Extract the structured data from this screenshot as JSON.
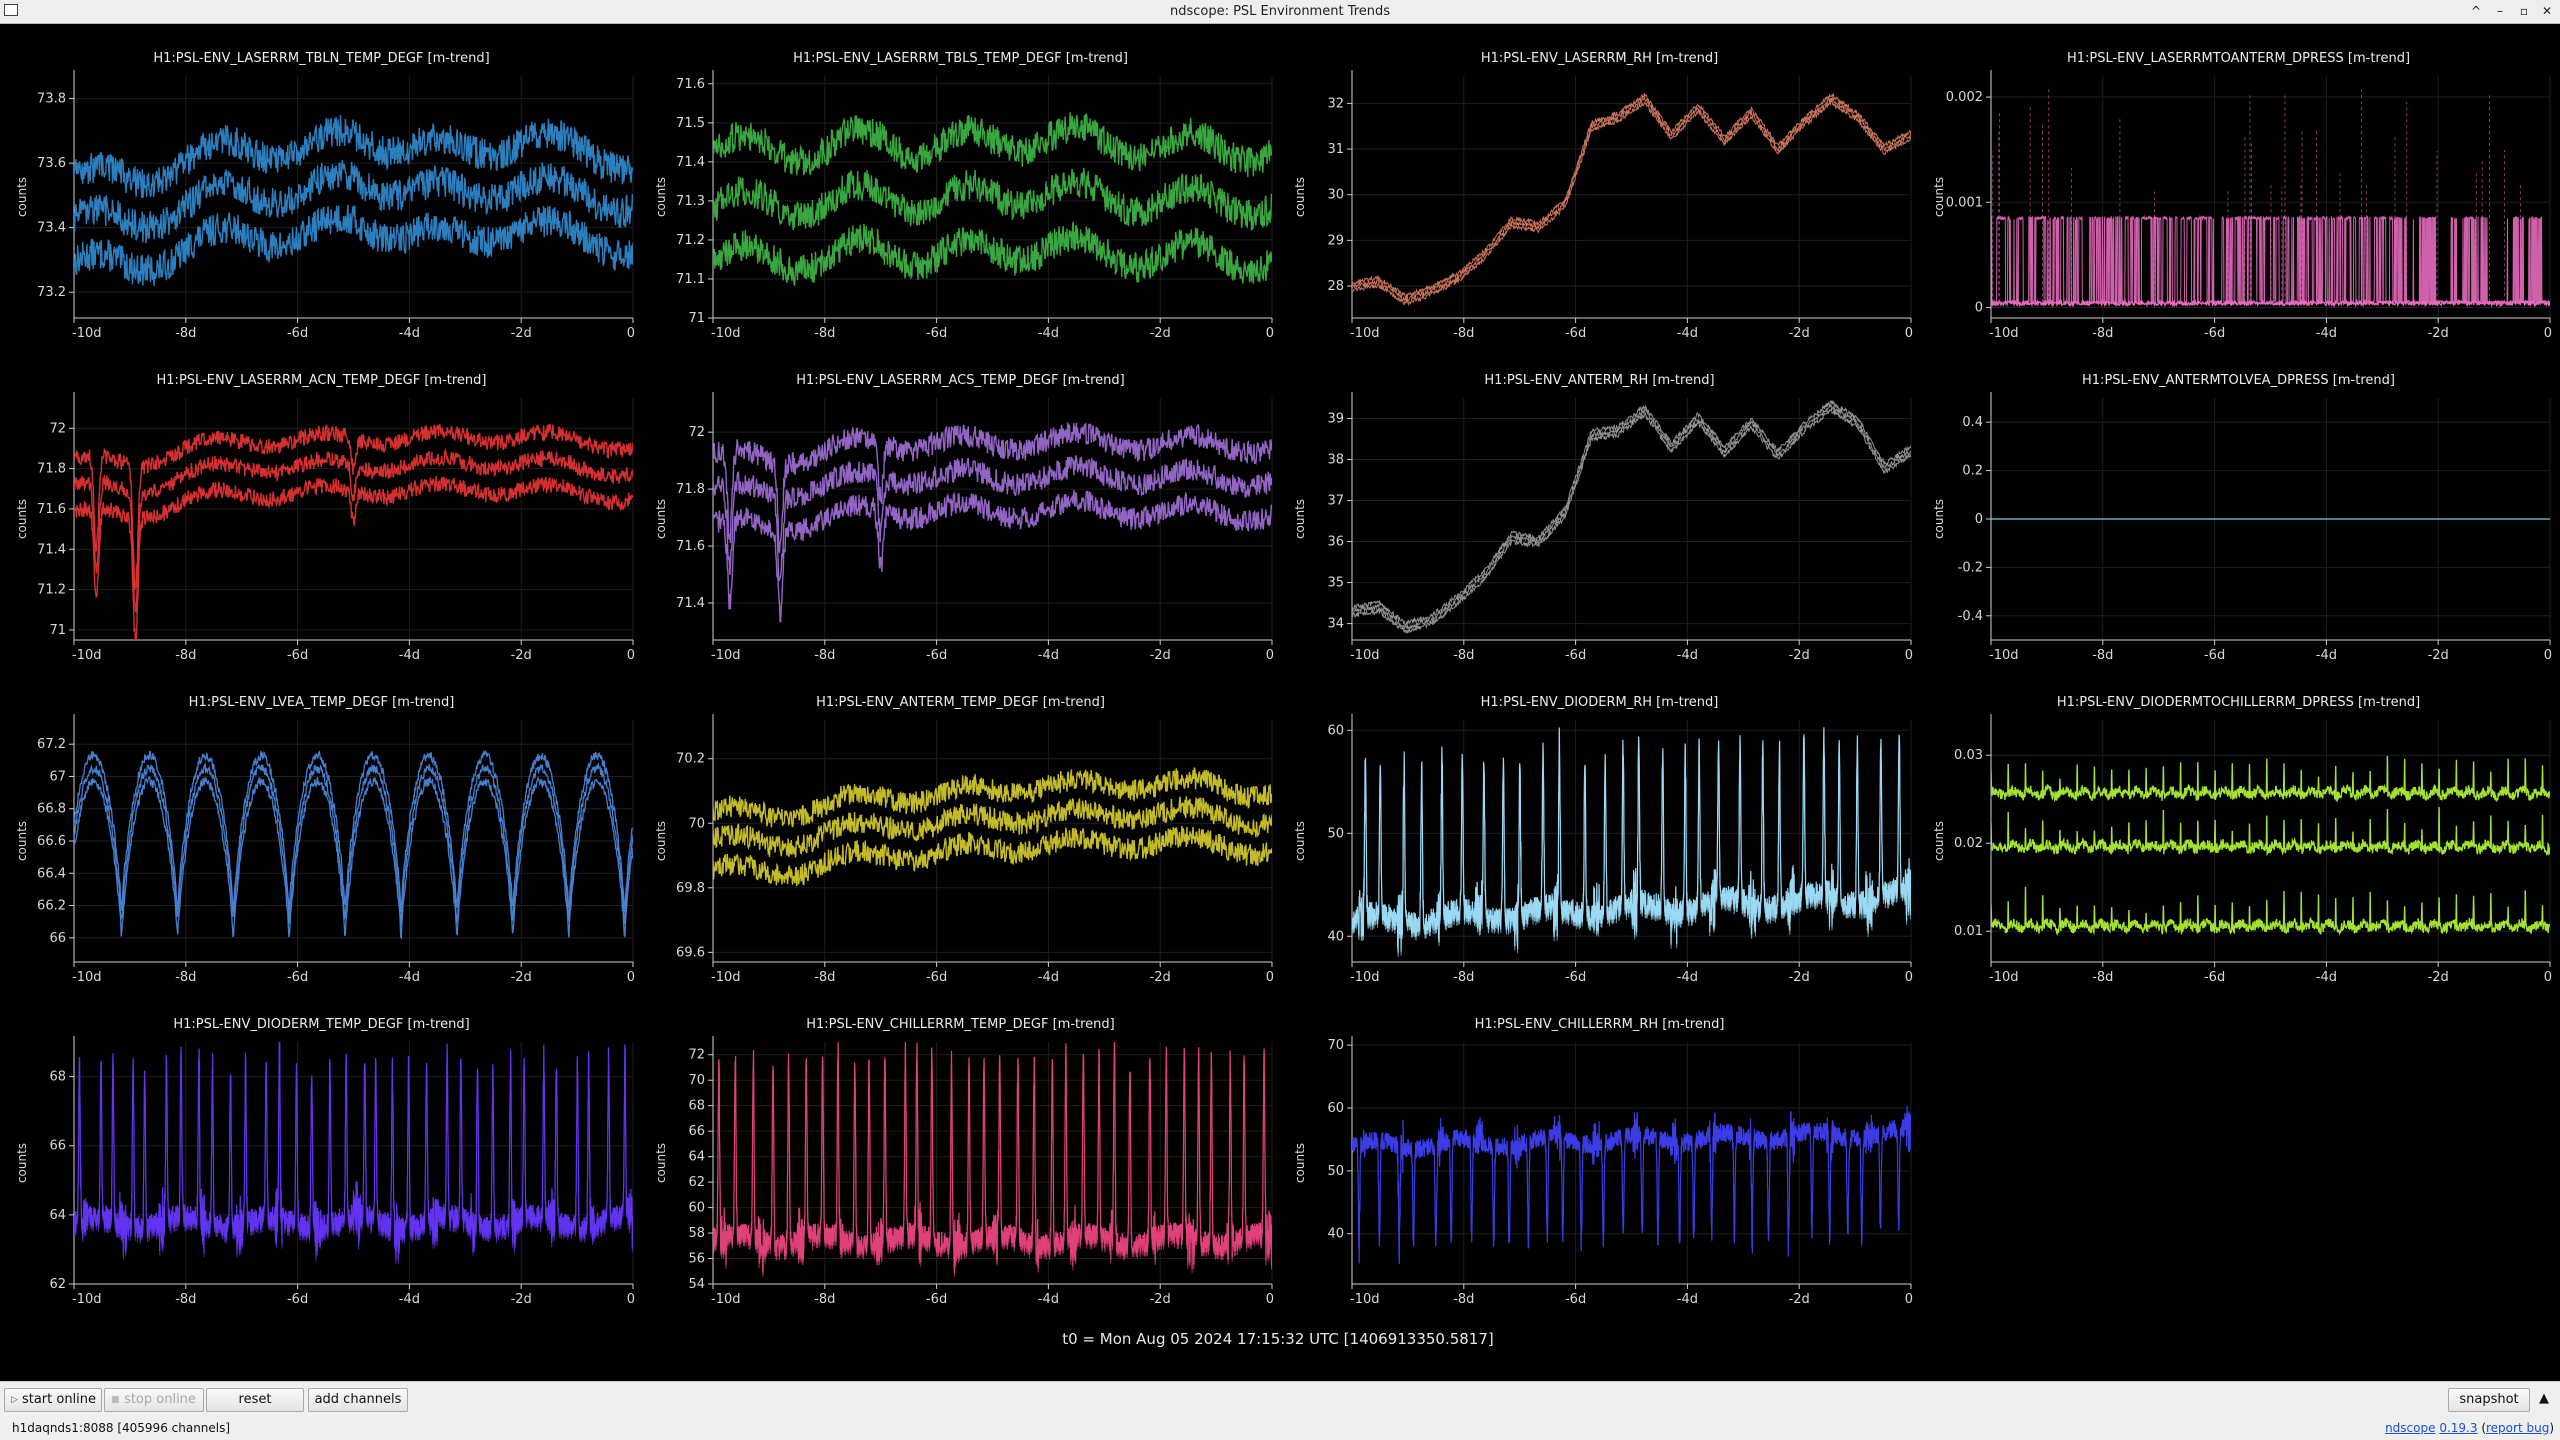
{
  "window": {
    "title": "ndscope: PSL Environment Trends",
    "controls": [
      "^",
      "–",
      "▫",
      "✕"
    ]
  },
  "common": {
    "ylabel": "counts",
    "xticks": [
      "-10d",
      "-8d",
      "-6d",
      "-4d",
      "-2d",
      "0"
    ]
  },
  "t0_label": "t0 = Mon Aug 05 2024 17:15:32 UTC [1406913350.5817]",
  "toolbar": {
    "start_online": "start online",
    "stop_online": "stop online",
    "reset": "reset",
    "add_channels": "add channels",
    "snapshot": "snapshot"
  },
  "status": {
    "connection": "h1daqnds1:8088  [405996 channels]",
    "ndscope_link": "ndscope",
    "version_link": "0.19.3",
    "report_bug_link": "report bug"
  },
  "chart_data": [
    {
      "type": "line",
      "title": "H1:PSL-ENV_LASERRM_TBLN_TEMP_DEGF [m-trend]",
      "color": "#2e86c8",
      "ylim": [
        73.12,
        73.87
      ],
      "yticks": [
        "73.2",
        "73.4",
        "73.6",
        "73.8"
      ],
      "ytick_values": [
        73.2,
        73.4,
        73.6,
        73.8
      ],
      "shape": "band3",
      "centers": [
        73.43,
        73.41,
        73.47,
        73.52,
        73.5,
        73.55,
        73.52,
        73.5,
        73.54,
        73.51,
        73.47
      ],
      "gap": 0.135,
      "noise": 0.05,
      "trace_width": 0.025
    },
    {
      "type": "line",
      "title": "H1:PSL-ENV_LASERRM_TBLS_TEMP_DEGF [m-trend]",
      "color": "#3cb043",
      "ylim": [
        71.0,
        71.62
      ],
      "yticks": [
        "71",
        "71.1",
        "71.2",
        "71.3",
        "71.4",
        "71.5",
        "71.6"
      ],
      "ytick_values": [
        71.0,
        71.1,
        71.2,
        71.3,
        71.4,
        71.5,
        71.6
      ],
      "shape": "band3",
      "centers": [
        71.28,
        71.3,
        71.29,
        71.32,
        71.3,
        71.31,
        71.33,
        71.3,
        71.31,
        71.29,
        71.3
      ],
      "gap": 0.14,
      "noise": 0.04,
      "trace_width": 0.02
    },
    {
      "type": "line",
      "title": "H1:PSL-ENV_LASERRM_RH [m-trend]",
      "color": "#d47a62",
      "ylim": [
        27.3,
        32.6
      ],
      "yticks": [
        "28",
        "29",
        "30",
        "31",
        "32"
      ],
      "ytick_values": [
        28,
        29,
        30,
        31,
        32
      ],
      "shape": "line",
      "points": [
        28.0,
        28.1,
        27.7,
        27.9,
        28.2,
        28.7,
        29.4,
        29.3,
        29.8,
        31.5,
        31.7,
        32.1,
        31.3,
        31.9,
        31.2,
        31.8,
        31.0,
        31.6,
        32.1,
        31.7,
        31.0,
        31.3
      ],
      "noise": 0.05,
      "trace_width": 0.08
    },
    {
      "type": "line",
      "title": "H1:PSL-ENV_LASERRMTOANTERM_DPRESS [m-trend]",
      "color": "#e66cbd",
      "ylim": [
        -0.0001,
        0.0022
      ],
      "yticks": [
        "0",
        "0.001",
        "0.002"
      ],
      "ytick_values": [
        0,
        0.001,
        0.002
      ],
      "shape": "dpress_pink"
    },
    {
      "type": "line",
      "title": "H1:PSL-ENV_LASERRM_ACN_TEMP_DEGF [m-trend]",
      "color": "#e23232",
      "ylim": [
        70.95,
        72.15
      ],
      "yticks": [
        "71",
        "71.2",
        "71.4",
        "71.6",
        "71.8",
        "72"
      ],
      "ytick_values": [
        71.0,
        71.2,
        71.4,
        71.6,
        71.8,
        72.0
      ],
      "shape": "band3",
      "centers": [
        71.72,
        71.68,
        71.78,
        71.8,
        71.82,
        71.81,
        71.83,
        71.82,
        71.84,
        71.8,
        71.79
      ],
      "gap": 0.13,
      "noise": 0.04,
      "trace_width": 0.03,
      "dips": [
        [
          0.04,
          0.45
        ],
        [
          0.11,
          0.6
        ],
        [
          0.5,
          0.15
        ]
      ]
    },
    {
      "type": "line",
      "title": "H1:PSL-ENV_LASERRM_ACS_TEMP_DEGF [m-trend]",
      "color": "#9a6ad0",
      "ylim": [
        71.27,
        72.12
      ],
      "yticks": [
        "71.4",
        "71.6",
        "71.8",
        "72"
      ],
      "ytick_values": [
        71.4,
        71.6,
        71.8,
        72.0
      ],
      "shape": "band3",
      "centers": [
        71.8,
        71.78,
        71.82,
        71.84,
        71.85,
        71.83,
        71.86,
        71.84,
        71.85,
        71.83,
        71.84
      ],
      "gap": 0.12,
      "noise": 0.04,
      "trace_width": 0.02,
      "dips": [
        [
          0.03,
          0.3
        ],
        [
          0.12,
          0.3
        ],
        [
          0.3,
          0.2
        ]
      ]
    },
    {
      "type": "line",
      "title": "H1:PSL-ENV_ANTERM_RH [m-trend]",
      "color": "#9a9a9a",
      "ylim": [
        33.6,
        39.5
      ],
      "yticks": [
        "34",
        "35",
        "36",
        "37",
        "38",
        "39"
      ],
      "ytick_values": [
        34,
        35,
        36,
        37,
        38,
        39
      ],
      "shape": "line",
      "points": [
        34.3,
        34.4,
        33.9,
        34.1,
        34.6,
        35.2,
        36.1,
        36.0,
        36.7,
        38.6,
        38.7,
        39.2,
        38.3,
        39.0,
        38.2,
        38.9,
        38.1,
        38.8,
        39.3,
        38.9,
        37.8,
        38.2
      ],
      "noise": 0.06,
      "trace_width": 0.1
    },
    {
      "type": "line",
      "title": "H1:PSL-ENV_ANTERMTOLVEA_DPRESS [m-trend]",
      "color": "#6fd3d8",
      "ylim": [
        -0.5,
        0.5
      ],
      "yticks": [
        "-0.4",
        "-0.2",
        "0",
        "0.2",
        "0.4"
      ],
      "ytick_values": [
        -0.4,
        -0.2,
        0,
        0.2,
        0.4
      ],
      "shape": "flat",
      "value": 0
    },
    {
      "type": "line",
      "title": "H1:PSL-ENV_LVEA_TEMP_DEGF [m-trend]",
      "color": "#4a86d8",
      "ylim": [
        65.85,
        67.35
      ],
      "yticks": [
        "66",
        "66.2",
        "66.4",
        "66.6",
        "66.8",
        "67",
        "67.2"
      ],
      "ytick_values": [
        66.0,
        66.2,
        66.4,
        66.6,
        66.8,
        67.0,
        67.2
      ],
      "shape": "periodic",
      "base": 66.05,
      "amp": 1.0,
      "periods": 10,
      "noise": 0.03,
      "trace_width": 0.08
    },
    {
      "type": "line",
      "title": "H1:PSL-ENV_ANTERM_TEMP_DEGF [m-trend]",
      "color": "#cfc52a",
      "ylim": [
        69.57,
        70.32
      ],
      "yticks": [
        "69.6",
        "69.8",
        "70",
        "70.2"
      ],
      "ytick_values": [
        69.6,
        69.8,
        70.0,
        70.2
      ],
      "shape": "band3",
      "centers": [
        69.95,
        69.93,
        69.97,
        69.99,
        70.0,
        70.01,
        70.03,
        70.02,
        70.04,
        70.02,
        70.01
      ],
      "gap": 0.09,
      "noise": 0.035,
      "trace_width": 0.02
    },
    {
      "type": "line",
      "title": "H1:PSL-ENV_DIODERM_RH [m-trend]",
      "color": "#9ad9f3",
      "ylim": [
        37.5,
        61.0
      ],
      "yticks": [
        "40",
        "50",
        "60"
      ],
      "ytick_values": [
        40,
        50,
        60
      ],
      "shape": "spiky",
      "base": 41.5,
      "baseEnd": 44.0,
      "spike": 57.0,
      "spikes": 28,
      "noise": 1.2
    },
    {
      "type": "line",
      "title": "H1:PSL-ENV_DIODERMTOCHILLERRM_DPRESS [m-trend]",
      "color": "#a3e232",
      "ylim": [
        0.0065,
        0.034
      ],
      "yticks": [
        "0.01",
        "0.02",
        "0.03"
      ],
      "ytick_values": [
        0.01,
        0.02,
        0.03
      ],
      "shape": "dpress_green"
    },
    {
      "type": "line",
      "title": "H1:PSL-ENV_DIODERM_TEMP_DEGF [m-trend]",
      "color": "#6233f0",
      "ylim": [
        62.0,
        69.0
      ],
      "yticks": [
        "62",
        "64",
        "66",
        "68"
      ],
      "ytick_values": [
        62,
        64,
        66,
        68
      ],
      "shape": "spiky",
      "base": 63.8,
      "baseEnd": 63.8,
      "spike": 68.5,
      "spikes": 34,
      "noise": 0.35
    },
    {
      "type": "line",
      "title": "H1:PSL-ENV_CHILLERRM_TEMP_DEGF [m-trend]",
      "color": "#e0407c",
      "ylim": [
        54.0,
        73.0
      ],
      "yticks": [
        "54",
        "56",
        "58",
        "60",
        "62",
        "64",
        "66",
        "68",
        "70",
        "72"
      ],
      "ytick_values": [
        54,
        56,
        58,
        60,
        62,
        64,
        66,
        68,
        70,
        72
      ],
      "shape": "spiky",
      "base": 57.5,
      "baseEnd": 57.5,
      "spike": 72.0,
      "spikes": 34,
      "noise": 0.9
    },
    {
      "type": "line",
      "title": "H1:PSL-ENV_CHILLERRM_RH [m-trend]",
      "color": "#3b3ce6",
      "ylim": [
        32.0,
        70.5
      ],
      "yticks": [
        "40",
        "50",
        "60",
        "70"
      ],
      "ytick_values": [
        40,
        50,
        60,
        70
      ],
      "shape": "spiky_down",
      "base": 54.0,
      "baseEnd": 56.0,
      "spike": 38.0,
      "spikes": 30,
      "noise": 1.5
    }
  ]
}
